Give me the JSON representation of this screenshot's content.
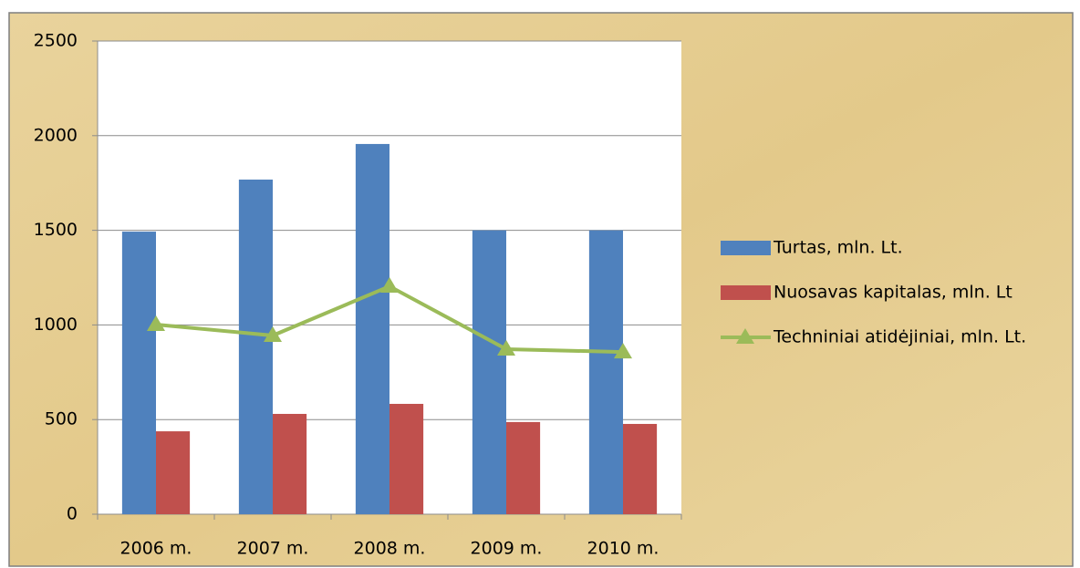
{
  "chart_data": {
    "type": "bar",
    "categories": [
      "2006 m.",
      "2007 m.",
      "2008 m.",
      "2009 m.",
      "2010 m."
    ],
    "series": [
      {
        "name": "Turtas, mln. Lt.",
        "color": "#4f81bd",
        "values": [
          1493,
          1768,
          1956,
          1500,
          1500
        ]
      },
      {
        "name": "Nuosavas kapitalas, mln. Lt",
        "color": "#c0504d",
        "values": [
          438,
          530,
          583,
          487,
          477
        ]
      },
      {
        "name": "Techniniai atidėjiniai, mln. Lt.",
        "color": "#9bbb59",
        "type": "line",
        "values": [
          1002,
          944,
          1204,
          872,
          857
        ]
      }
    ],
    "ylim": [
      0,
      2500
    ],
    "yticks": [
      0,
      500,
      1000,
      1500,
      2000,
      2500
    ],
    "grid": true,
    "legend": "right"
  }
}
